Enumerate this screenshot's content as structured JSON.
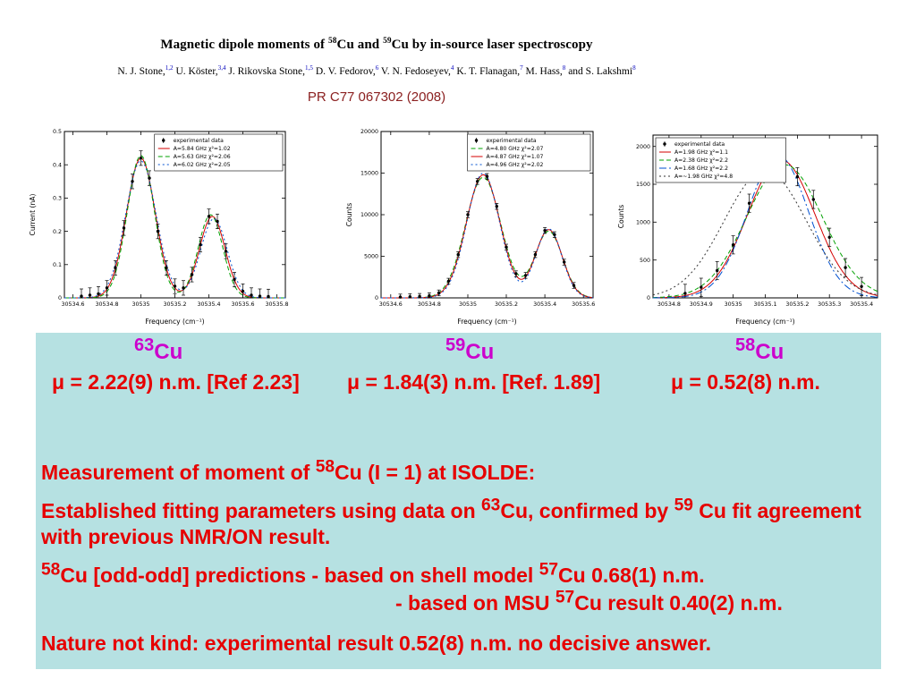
{
  "colors": {
    "panel_bg": "#b6e1e2",
    "emphasis_red": "#e60000",
    "isotope_magenta": "#cc00cc",
    "affiliation_blue": "#0000bb",
    "reference_maroon": "#8b2020"
  },
  "header": {
    "title": [
      {
        "text": "Magnetic dipole moments of "
      },
      {
        "sup": "58"
      },
      {
        "text": "Cu and "
      },
      {
        "sup": "59"
      },
      {
        "text": "Cu by in-source laser spectroscopy"
      }
    ],
    "authors": [
      {
        "text": "N. J. Stone,"
      },
      {
        "sup": "1,2",
        "color": "#0000bb"
      },
      {
        "text": " U. Köster,"
      },
      {
        "sup": "3,4",
        "color": "#0000bb"
      },
      {
        "text": " J. Rikovska Stone,"
      },
      {
        "sup": "1,5",
        "color": "#0000bb"
      },
      {
        "text": " D. V. Fedorov,"
      },
      {
        "sup": "6",
        "color": "#0000bb"
      },
      {
        "text": " V. N. Fedoseyev,"
      },
      {
        "sup": "4",
        "color": "#0000bb"
      },
      {
        "text": " K. T. Flanagan,"
      },
      {
        "sup": "7",
        "color": "#0000bb"
      },
      {
        "text": " M. Hass,"
      },
      {
        "sup": "8",
        "color": "#0000bb"
      },
      {
        "text": " and S. Lakshmi"
      },
      {
        "sup": "8",
        "color": "#0000bb"
      }
    ],
    "reference": "PR C77 067302 (2008)"
  },
  "results_panel": {
    "isotopes": [
      {
        "sup": "63",
        "symbol": "Cu"
      },
      {
        "sup": "59",
        "symbol": "Cu"
      },
      {
        "sup": "58",
        "symbol": "Cu"
      }
    ],
    "moments": [
      "μ = 2.22(9) n.m. [Ref 2.23]",
      "μ = 1.84(3) n.m. [Ref. 1.89]",
      "μ  = 0.52(8) n.m."
    ],
    "lines": [
      [
        {
          "text": "Measurement of moment of "
        },
        {
          "sup": "58"
        },
        {
          "text": "Cu (I = 1) at ISOLDE:"
        }
      ],
      [
        {
          "text": "Established fitting parameters using data on "
        },
        {
          "sup": "63"
        },
        {
          "text": "Cu, confirmed by "
        },
        {
          "sup": "59"
        },
        {
          "text": " Cu fit agreement with previous NMR/ON result."
        }
      ],
      [
        {
          "sup": "58"
        },
        {
          "text": "Cu [odd-odd] predictions  - based on shell model "
        },
        {
          "sup": "57"
        },
        {
          "text": "Cu 0.68(1) n.m."
        }
      ],
      [
        {
          "text": "- based on MSU "
        },
        {
          "sup": "57"
        },
        {
          "text": "Cu result 0.40(2) n.m."
        }
      ],
      [
        {
          "text": "Nature not kind: experimental result  0.52(8) n.m. no decisive answer."
        }
      ]
    ]
  },
  "chart_data": [
    {
      "type": "line",
      "name": "63Cu hyperfine spectrum",
      "xlabel": "Frequency (cm⁻¹)",
      "ylabel": "Current (nA)",
      "xlim": [
        30534.55,
        30535.85
      ],
      "ylim": [
        0,
        0.5
      ],
      "xticks": [
        30534.6,
        30534.8,
        30535,
        30535.2,
        30535.4,
        30535.6,
        30535.8
      ],
      "xtick_labels": [
        "30534.6",
        "30534.8",
        "30535",
        "30535.2",
        "30535.4",
        "30535.6",
        "30535.8"
      ],
      "yticks": [
        0,
        0.1,
        0.2,
        0.3,
        0.4,
        0.5
      ],
      "ytick_labels": [
        "0",
        "0.1",
        "0.2",
        "0.3",
        "0.4",
        "0.5"
      ],
      "legend_pos": "right",
      "experimental": {
        "label": "experimental data",
        "x": [
          30534.65,
          30534.7,
          30534.75,
          30534.8,
          30534.85,
          30534.9,
          30534.95,
          30535.0,
          30535.05,
          30535.1,
          30535.15,
          30535.2,
          30535.25,
          30535.3,
          30535.35,
          30535.4,
          30535.45,
          30535.5,
          30535.55,
          30535.6,
          30535.65,
          30535.7,
          30535.75
        ],
        "y": [
          0.005,
          0.008,
          0.012,
          0.03,
          0.09,
          0.21,
          0.35,
          0.42,
          0.36,
          0.2,
          0.09,
          0.035,
          0.03,
          0.07,
          0.16,
          0.245,
          0.23,
          0.14,
          0.055,
          0.02,
          0.008,
          0.005,
          0.004
        ],
        "yerr": 0.022
      },
      "series": [
        {
          "label": "A=5.84 GHz  χ²=1.02",
          "color": "#d40000",
          "dash": "",
          "peaks": [
            [
              30535.0,
              0.42,
              0.085
            ],
            [
              30535.42,
              0.245,
              0.075
            ]
          ]
        },
        {
          "label": "A=5.63 GHz  χ²=2.06",
          "color": "#00a000",
          "dash": "5,3",
          "peaks": [
            [
              30535.0,
              0.428,
              0.08
            ],
            [
              30535.41,
              0.25,
              0.072
            ]
          ]
        },
        {
          "label": "A=6.02 GHz  χ²=2.05",
          "color": "#0050d0",
          "dash": "2,3",
          "peaks": [
            [
              30535.0,
              0.412,
              0.09
            ],
            [
              30535.43,
              0.238,
              0.078
            ]
          ]
        }
      ]
    },
    {
      "type": "line",
      "name": "59Cu hyperfine spectrum",
      "xlabel": "Frequency (cm⁻¹)",
      "ylabel": "Counts",
      "xlim": [
        30534.55,
        30535.65
      ],
      "ylim": [
        0,
        20000
      ],
      "xticks": [
        30534.6,
        30534.8,
        30535,
        30535.2,
        30535.4,
        30535.6
      ],
      "xtick_labels": [
        "30534.6",
        "30534.8",
        "30535",
        "30535.2",
        "30535.4",
        "30535.6"
      ],
      "yticks": [
        0,
        5000,
        10000,
        15000,
        20000
      ],
      "ytick_labels": [
        "0",
        "5000",
        "10000",
        "15000",
        "20000"
      ],
      "legend_pos": "right",
      "experimental": {
        "label": "experimental data",
        "x": [
          30534.65,
          30534.7,
          30534.75,
          30534.8,
          30534.85,
          30534.9,
          30534.95,
          30535.0,
          30535.05,
          30535.1,
          30535.15,
          30535.2,
          30535.25,
          30535.3,
          30535.35,
          30535.4,
          30535.45,
          30535.5,
          30535.55
        ],
        "y": [
          100,
          140,
          180,
          260,
          600,
          2000,
          5200,
          10000,
          14000,
          14600,
          11000,
          6100,
          2900,
          2700,
          5200,
          8100,
          7600,
          4300,
          1500
        ],
        "yerr": 350
      },
      "series": [
        {
          "label": "A=4.80 GHz  χ²=2.07",
          "color": "#00a000",
          "dash": "5,3",
          "peaks": [
            [
              30535.08,
              14500,
              0.092
            ],
            [
              30535.42,
              8000,
              0.072
            ]
          ]
        },
        {
          "label": "A=4.87 GHz  χ²=1.07",
          "color": "#d40000",
          "dash": "",
          "peaks": [
            [
              30535.08,
              14800,
              0.088
            ],
            [
              30535.42,
              8200,
              0.07
            ]
          ]
        },
        {
          "label": "A=4.96 GHz  χ²=2.02",
          "color": "#0050d0",
          "dash": "2,3",
          "peaks": [
            [
              30535.08,
              15000,
              0.085
            ],
            [
              30535.42,
              8300,
              0.068
            ]
          ]
        }
      ]
    },
    {
      "type": "line",
      "name": "58Cu hyperfine spectrum",
      "xlabel": "Frequency (cm⁻¹)",
      "ylabel": "Counts",
      "xlim": [
        30534.75,
        30535.45
      ],
      "ylim": [
        0,
        2150
      ],
      "xticks": [
        30534.8,
        30534.9,
        30535,
        30535.1,
        30535.2,
        30535.3,
        30535.4
      ],
      "xtick_labels": [
        "30534.8",
        "30534.9",
        "30535",
        "30535.1",
        "30535.2",
        "30535.3",
        "30535.4"
      ],
      "yticks": [
        0,
        500,
        1000,
        1500,
        2000
      ],
      "ytick_labels": [
        "0",
        "500",
        "1000",
        "1500",
        "2000"
      ],
      "legend_pos": "left",
      "experimental": {
        "label": "experimental data",
        "x": [
          30534.85,
          30534.9,
          30534.95,
          30535.0,
          30535.05,
          30535.1,
          30535.15,
          30535.2,
          30535.25,
          30535.3,
          30535.35,
          30535.4
        ],
        "y": [
          60,
          140,
          360,
          700,
          1250,
          1950,
          1800,
          1600,
          1300,
          800,
          400,
          150
        ],
        "yerr": 120
      },
      "series": [
        {
          "label": "A=1.98 GHz  χ²=1.1",
          "color": "#d40000",
          "dash": "",
          "peaks": [
            [
              30535.15,
              1820,
              0.105
            ]
          ]
        },
        {
          "label": "A=2.38 GHz  χ²=2.2",
          "color": "#00a000",
          "dash": "5,3",
          "peaks": [
            [
              30535.16,
              1760,
              0.118
            ]
          ]
        },
        {
          "label": "A=1.68 GHz  χ²=2.2",
          "color": "#0050d0",
          "dash": "8,3,2,3",
          "peaks": [
            [
              30535.14,
              1880,
              0.095
            ]
          ]
        },
        {
          "label": "A=~1.98 GHz  χ²=4.8",
          "color": "#333333",
          "dash": "2,3",
          "peaks": [
            [
              30535.1,
              1680,
              0.128
            ]
          ]
        }
      ]
    }
  ]
}
